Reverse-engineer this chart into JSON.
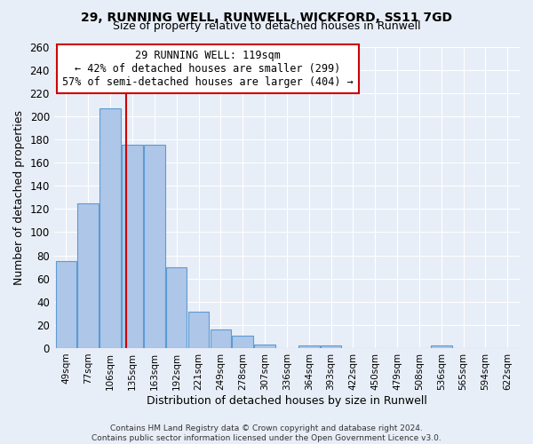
{
  "title1": "29, RUNNING WELL, RUNWELL, WICKFORD, SS11 7GD",
  "title2": "Size of property relative to detached houses in Runwell",
  "xlabel": "Distribution of detached houses by size in Runwell",
  "ylabel": "Number of detached properties",
  "annotation_line1": "29 RUNNING WELL: 119sqm",
  "annotation_line2": "← 42% of detached houses are smaller (299)",
  "annotation_line3": "57% of semi-detached houses are larger (404) →",
  "bin_labels": [
    "49sqm",
    "77sqm",
    "106sqm",
    "135sqm",
    "163sqm",
    "192sqm",
    "221sqm",
    "249sqm",
    "278sqm",
    "307sqm",
    "336sqm",
    "364sqm",
    "393sqm",
    "422sqm",
    "450sqm",
    "479sqm",
    "508sqm",
    "536sqm",
    "565sqm",
    "594sqm",
    "622sqm"
  ],
  "bar_heights": [
    75,
    125,
    207,
    175,
    175,
    70,
    31,
    16,
    11,
    3,
    0,
    2,
    2,
    0,
    0,
    0,
    0,
    2,
    0,
    0,
    0
  ],
  "bar_color": "#aec6e8",
  "bar_edge_color": "#5b9bd5",
  "red_line_x": 2.72,
  "red_line_color": "#cc0000",
  "ylim": [
    0,
    260
  ],
  "yticks": [
    0,
    20,
    40,
    60,
    80,
    100,
    120,
    140,
    160,
    180,
    200,
    220,
    240,
    260
  ],
  "bg_color": "#e8eef7",
  "grid_color": "#ffffff",
  "footer": "Contains HM Land Registry data © Crown copyright and database right 2024.\nContains public sector information licensed under the Open Government Licence v3.0."
}
